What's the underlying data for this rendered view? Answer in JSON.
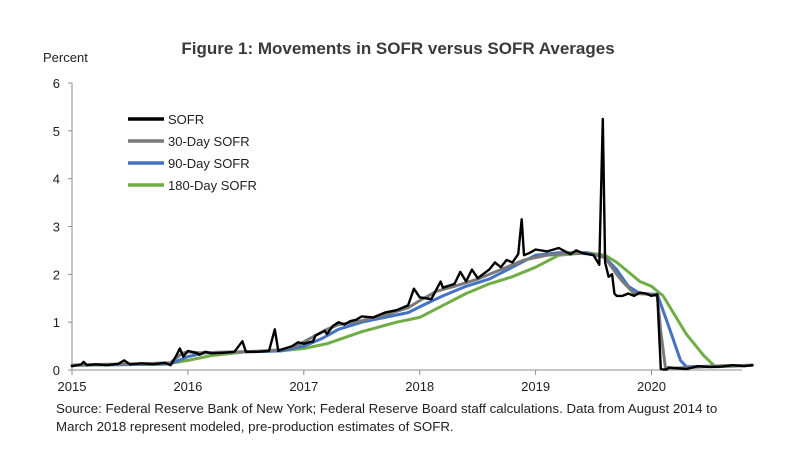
{
  "chart_data": {
    "type": "line",
    "title": "Figure 1: Movements in SOFR versus SOFR Averages",
    "ylabel": "Percent",
    "xlabel": "",
    "ylim": [
      0,
      6
    ],
    "xlim": [
      2015.0,
      2020.9
    ],
    "y_ticks": [
      "0",
      "1",
      "2",
      "3",
      "4",
      "5",
      "6"
    ],
    "x_ticks": [
      "2015",
      "2016",
      "2017",
      "2018",
      "2019",
      "2020"
    ],
    "legend_position": "upper-left",
    "series": [
      {
        "name": "SOFR",
        "color": "#000000",
        "x": [
          2015.0,
          2015.08,
          2015.1,
          2015.13,
          2015.2,
          2015.3,
          2015.4,
          2015.45,
          2015.5,
          2015.6,
          2015.7,
          2015.8,
          2015.85,
          2015.9,
          2015.93,
          2015.96,
          2016.0,
          2016.08,
          2016.1,
          2016.15,
          2016.2,
          2016.3,
          2016.4,
          2016.47,
          2016.5,
          2016.6,
          2016.7,
          2016.75,
          2016.78,
          2016.8,
          2016.9,
          2016.95,
          2017.0,
          2017.08,
          2017.1,
          2017.18,
          2017.2,
          2017.25,
          2017.3,
          2017.35,
          2017.4,
          2017.45,
          2017.5,
          2017.6,
          2017.7,
          2017.8,
          2017.9,
          2017.95,
          2018.0,
          2018.1,
          2018.18,
          2018.2,
          2018.3,
          2018.35,
          2018.4,
          2018.45,
          2018.5,
          2018.6,
          2018.65,
          2018.7,
          2018.75,
          2018.8,
          2018.85,
          2018.88,
          2018.9,
          2018.95,
          2019.0,
          2019.1,
          2019.2,
          2019.3,
          2019.35,
          2019.4,
          2019.45,
          2019.5,
          2019.55,
          2019.58,
          2019.6,
          2019.63,
          2019.66,
          2019.68,
          2019.7,
          2019.75,
          2019.8,
          2019.85,
          2019.9,
          2019.95,
          2020.0,
          2020.05,
          2020.08,
          2020.1,
          2020.13,
          2020.15,
          2020.2,
          2020.3,
          2020.4,
          2020.5,
          2020.6,
          2020.7,
          2020.8,
          2020.87
        ],
        "values": [
          0.08,
          0.12,
          0.17,
          0.1,
          0.12,
          0.1,
          0.13,
          0.2,
          0.12,
          0.14,
          0.12,
          0.15,
          0.1,
          0.3,
          0.45,
          0.28,
          0.4,
          0.35,
          0.32,
          0.38,
          0.35,
          0.36,
          0.38,
          0.6,
          0.38,
          0.38,
          0.4,
          0.85,
          0.4,
          0.42,
          0.5,
          0.58,
          0.55,
          0.6,
          0.72,
          0.82,
          0.75,
          0.92,
          1.0,
          0.95,
          1.02,
          1.05,
          1.12,
          1.1,
          1.2,
          1.25,
          1.35,
          1.7,
          1.52,
          1.48,
          1.85,
          1.72,
          1.8,
          2.05,
          1.85,
          2.1,
          1.92,
          2.1,
          2.25,
          2.15,
          2.3,
          2.25,
          2.42,
          3.15,
          2.4,
          2.45,
          2.52,
          2.48,
          2.55,
          2.42,
          2.5,
          2.45,
          2.42,
          2.4,
          2.2,
          5.25,
          2.25,
          1.95,
          2.0,
          1.6,
          1.55,
          1.55,
          1.6,
          1.55,
          1.62,
          1.6,
          1.55,
          1.58,
          0.02,
          0.01,
          0.01,
          0.05,
          0.04,
          0.02,
          0.08,
          0.06,
          0.07,
          0.1,
          0.08,
          0.1
        ]
      },
      {
        "name": "30-Day SOFR",
        "color": "#7a7a7a",
        "x": [
          2015.0,
          2015.3,
          2015.6,
          2015.85,
          2015.95,
          2016.0,
          2016.1,
          2016.3,
          2016.5,
          2016.8,
          2016.95,
          2017.1,
          2017.2,
          2017.3,
          2017.5,
          2017.7,
          2017.9,
          2018.0,
          2018.15,
          2018.3,
          2018.5,
          2018.7,
          2018.9,
          2019.1,
          2019.3,
          2019.5,
          2019.6,
          2019.7,
          2019.75,
          2019.85,
          2020.0,
          2020.05,
          2020.08,
          2020.12,
          2020.2,
          2020.4,
          2020.6,
          2020.87
        ],
        "values": [
          0.1,
          0.12,
          0.13,
          0.15,
          0.35,
          0.38,
          0.36,
          0.37,
          0.38,
          0.42,
          0.52,
          0.72,
          0.85,
          0.95,
          1.03,
          1.15,
          1.3,
          1.45,
          1.65,
          1.75,
          1.9,
          2.1,
          2.3,
          2.4,
          2.45,
          2.42,
          2.35,
          2.0,
          1.85,
          1.6,
          1.58,
          1.55,
          0.8,
          0.05,
          0.04,
          0.06,
          0.09,
          0.1
        ]
      },
      {
        "name": "90-Day SOFR",
        "color": "#4472c4",
        "x": [
          2015.0,
          2015.3,
          2015.6,
          2015.85,
          2016.0,
          2016.15,
          2016.3,
          2016.5,
          2016.8,
          2017.0,
          2017.15,
          2017.3,
          2017.5,
          2017.7,
          2017.9,
          2018.05,
          2018.2,
          2018.4,
          2018.6,
          2018.8,
          2019.0,
          2019.2,
          2019.45,
          2019.6,
          2019.7,
          2019.8,
          2019.9,
          2020.05,
          2020.15,
          2020.25,
          2020.3,
          2020.5,
          2020.7,
          2020.87
        ],
        "values": [
          0.1,
          0.11,
          0.12,
          0.13,
          0.28,
          0.36,
          0.37,
          0.38,
          0.4,
          0.5,
          0.65,
          0.85,
          1.0,
          1.1,
          1.2,
          1.38,
          1.55,
          1.75,
          1.9,
          2.15,
          2.4,
          2.45,
          2.45,
          2.35,
          2.1,
          1.75,
          1.6,
          1.58,
          0.9,
          0.2,
          0.07,
          0.08,
          0.09,
          0.1
        ]
      },
      {
        "name": "180-Day SOFR",
        "color": "#70ad47",
        "x": [
          2015.0,
          2015.4,
          2015.8,
          2016.0,
          2016.2,
          2016.5,
          2016.8,
          2017.0,
          2017.2,
          2017.5,
          2017.8,
          2018.0,
          2018.2,
          2018.4,
          2018.6,
          2018.8,
          2019.0,
          2019.2,
          2019.45,
          2019.6,
          2019.7,
          2019.8,
          2019.9,
          2020.0,
          2020.05,
          2020.1,
          2020.2,
          2020.3,
          2020.45,
          2020.55,
          2020.7,
          2020.87
        ],
        "values": [
          0.1,
          0.11,
          0.12,
          0.2,
          0.3,
          0.38,
          0.4,
          0.45,
          0.55,
          0.8,
          1.0,
          1.1,
          1.35,
          1.6,
          1.8,
          1.95,
          2.15,
          2.4,
          2.45,
          2.4,
          2.25,
          2.05,
          1.85,
          1.75,
          1.65,
          1.55,
          1.15,
          0.75,
          0.3,
          0.07,
          0.08,
          0.1
        ]
      }
    ]
  },
  "source_note": "Source: Federal Reserve Bank of New York; Federal Reserve Board staff calculations. Data from August 2014 to March 2018 represent modeled, pre-production estimates of  SOFR."
}
